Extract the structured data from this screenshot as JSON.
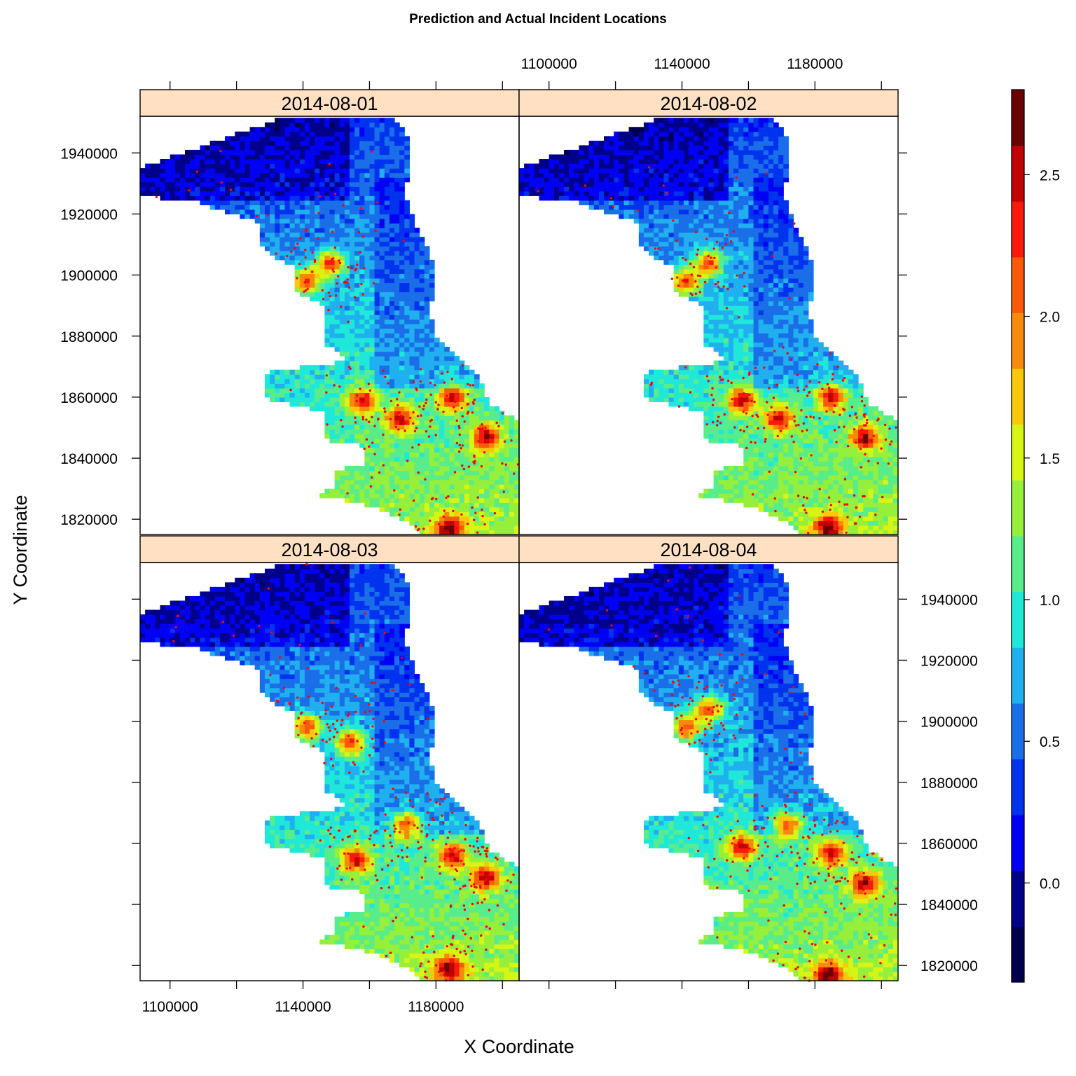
{
  "chart_data": {
    "type": "heatmap",
    "title": "Prediction and Actual Incident Locations",
    "xlabel": "X Coordinate",
    "ylabel": "Y Coordinate",
    "xlim": [
      1091000,
      1205000
    ],
    "ylim": [
      1815000,
      1952000
    ],
    "x_ticks": [
      1100000,
      1120000,
      1140000,
      1160000,
      1180000,
      1200000
    ],
    "x_tick_labels": [
      "1100000",
      "1140000",
      "1180000"
    ],
    "y_ticks": [
      1820000,
      1840000,
      1860000,
      1880000,
      1900000,
      1920000,
      1940000
    ],
    "y_tick_labels": [
      "1820000",
      "1840000",
      "1860000",
      "1880000",
      "1900000",
      "1920000",
      "1940000"
    ],
    "panels": [
      {
        "label": "2014-08-01",
        "hotspots": [
          [
            1141000,
            1898000
          ],
          [
            1158000,
            1859000
          ],
          [
            1169000,
            1853000
          ],
          [
            1185000,
            1860000
          ],
          [
            1195000,
            1847000
          ],
          [
            1184000,
            1817000
          ],
          [
            1148000,
            1904000
          ]
        ],
        "incident_count": 260
      },
      {
        "label": "2014-08-02",
        "hotspots": [
          [
            1141000,
            1898000
          ],
          [
            1158000,
            1859000
          ],
          [
            1169000,
            1853000
          ],
          [
            1185000,
            1860000
          ],
          [
            1195000,
            1847000
          ],
          [
            1184000,
            1817000
          ],
          [
            1148000,
            1904000
          ]
        ],
        "incident_count": 250
      },
      {
        "label": "2014-08-03",
        "hotspots": [
          [
            1141000,
            1898000
          ],
          [
            1156000,
            1855000
          ],
          [
            1171000,
            1866000
          ],
          [
            1185000,
            1856000
          ],
          [
            1195000,
            1849000
          ],
          [
            1184000,
            1819000
          ],
          [
            1154000,
            1893000
          ]
        ],
        "incident_count": 280
      },
      {
        "label": "2014-08-04",
        "hotspots": [
          [
            1141000,
            1898000
          ],
          [
            1158000,
            1859000
          ],
          [
            1172000,
            1866000
          ],
          [
            1185000,
            1857000
          ],
          [
            1195000,
            1847000
          ],
          [
            1184000,
            1817000
          ],
          [
            1148000,
            1904000
          ]
        ],
        "incident_count": 240
      }
    ],
    "colorbar": {
      "min": -0.35,
      "max": 2.8,
      "ticks": [
        0.0,
        0.5,
        1.0,
        1.5,
        2.0,
        2.5
      ],
      "tick_labels": [
        "0.0",
        "0.5",
        "1.0",
        "1.5",
        "2.0",
        "2.5"
      ],
      "colors": [
        "#00004f",
        "#00008b",
        "#0000f5",
        "#0033ee",
        "#1a6fe8",
        "#20b0f0",
        "#20e8d8",
        "#58ed8a",
        "#96ef3a",
        "#d6f514",
        "#f8c80a",
        "#f88a0a",
        "#f85a0a",
        "#f81a0a",
        "#c20000",
        "#6a0000"
      ]
    },
    "incident_color": "#ff0000",
    "grid": false,
    "legend": "right"
  }
}
